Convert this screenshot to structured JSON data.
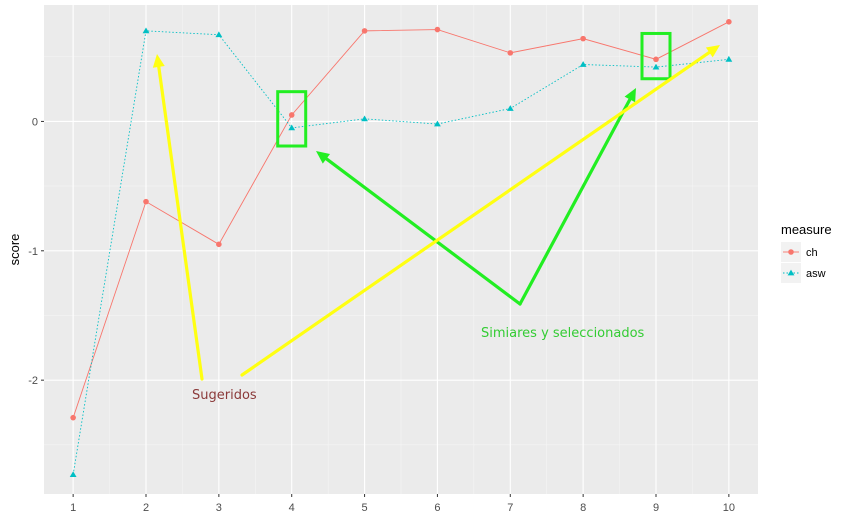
{
  "chart_data": {
    "type": "line",
    "title": "",
    "xlabel": "",
    "ylabel": "score",
    "x": [
      1,
      2,
      3,
      4,
      5,
      6,
      7,
      8,
      9,
      10
    ],
    "xticks": [
      "1",
      "2",
      "3",
      "4",
      "5",
      "6",
      "7",
      "8",
      "9",
      "10"
    ],
    "yticks": [
      {
        "value": 0,
        "label": "0"
      },
      {
        "value": -1,
        "label": "-1"
      },
      {
        "value": -2,
        "label": "-2"
      }
    ],
    "ylim": [
      -2.88,
      0.9
    ],
    "xlim": [
      0.6,
      10.4
    ],
    "grid": true,
    "legend": {
      "title": "measure",
      "position": "right"
    },
    "series": [
      {
        "name": "ch",
        "color": "#F8766D",
        "line": "solid",
        "marker": "circle",
        "values": [
          -2.29,
          -0.62,
          -0.95,
          0.05,
          0.7,
          0.71,
          0.53,
          0.64,
          0.48,
          0.77
        ]
      },
      {
        "name": "asw",
        "color": "#00BFC4",
        "line": "dotted",
        "marker": "triangle",
        "values": [
          -2.73,
          0.7,
          0.67,
          -0.05,
          0.02,
          -0.02,
          0.1,
          0.44,
          0.42,
          0.48
        ]
      }
    ],
    "annotations": [
      {
        "text": "Simiares y seleccionados",
        "color": "#33cc33"
      },
      {
        "text": "Sugeridos",
        "color": "#8b3a3a"
      }
    ],
    "highlight_color": "#22ee22",
    "arrow_colors": {
      "green": "#22ee22",
      "yellow": "#ffff11"
    }
  }
}
